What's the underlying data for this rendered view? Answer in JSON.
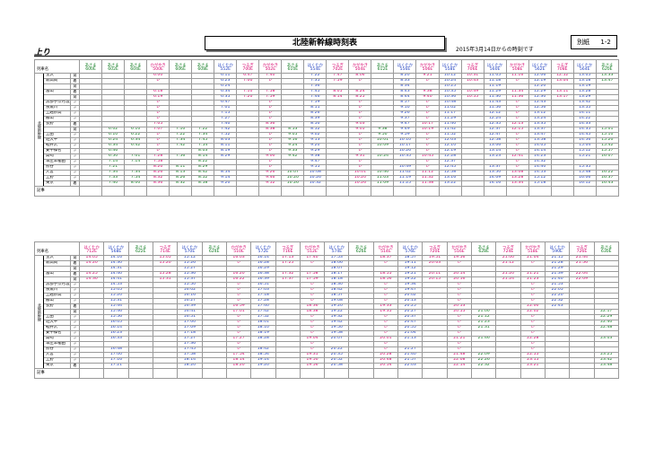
{
  "header": {
    "title": "北陸新幹線時刻表",
    "date_note": "2015年3月14日からの時刻です",
    "sheet_label": "別紙",
    "sheet_no": "1-2",
    "direction": "上り"
  },
  "labels": {
    "train_name": "列車名",
    "line_name": "北陸新幹線",
    "remarks": "記事",
    "arr": "着",
    "dep": "発"
  },
  "stations": [
    {
      "name": "金沢",
      "ad": "発"
    },
    {
      "name": "新高岡",
      "ad": "着"
    },
    {
      "name": "",
      "ad": "発"
    },
    {
      "name": "富山",
      "ad": "着"
    },
    {
      "name": "",
      "ad": "発"
    },
    {
      "name": "黒部宇奈月温泉",
      "ad": "〃"
    },
    {
      "name": "糸魚川",
      "ad": "〃"
    },
    {
      "name": "上越妙高",
      "ad": "〃"
    },
    {
      "name": "飯山",
      "ad": "〃"
    },
    {
      "name": "長野",
      "ad": "着"
    },
    {
      "name": "",
      "ad": "発"
    },
    {
      "name": "上田",
      "ad": "〃"
    },
    {
      "name": "佐久平",
      "ad": "〃"
    },
    {
      "name": "軽井沢",
      "ad": "〃"
    },
    {
      "name": "安中榛名",
      "ad": "〃"
    },
    {
      "name": "高崎",
      "ad": "〃"
    },
    {
      "name": "本庄早稲田",
      "ad": "〃"
    },
    {
      "name": "熊谷",
      "ad": "〃"
    },
    {
      "name": "大宮",
      "ad": "〃"
    },
    {
      "name": "上野",
      "ad": "〃"
    },
    {
      "name": "東京",
      "ad": "着"
    }
  ],
  "table1": [
    {
      "svc": "あさま",
      "no": "600E",
      "c": "green",
      "t": [
        "",
        "",
        "",
        "",
        "",
        "",
        "",
        "",
        "",
        "",
        "",
        "",
        "",
        "",
        "",
        "",
        "",
        "",
        "",
        "",
        ""
      ]
    },
    {
      "svc": "あさま",
      "no": "602E",
      "c": "green",
      "t": [
        "",
        "",
        "",
        "",
        "",
        "",
        "",
        "",
        "",
        "",
        "6:02",
        "6:10",
        "6:24",
        "6:34",
        "6:46",
        "6:50",
        "7:14",
        "7:21",
        "7:34",
        "7:33",
        "7:40"
      ]
    },
    {
      "svc": "あさま",
      "no": "604E",
      "c": "green",
      "t": [
        "",
        "",
        "",
        "",
        "",
        "",
        "",
        "",
        "",
        "",
        "6:10",
        "6:22",
        "6:34",
        "6:42",
        "",
        "7:01",
        "7:14",
        "",
        "7:34",
        "7:54",
        "8:00"
      ]
    },
    {
      "svc": "かがやき",
      "no": "500E",
      "c": "red",
      "t": [
        "6:00",
        "レ",
        "",
        "6:18",
        "6:19",
        "レ",
        "レ",
        "レ",
        "レ",
        "7:05",
        "7:07",
        "レ",
        "レ",
        "レ",
        "レ",
        "7:28",
        "7:58",
        "8:20",
        "8:26",
        "8:32",
        "8:36"
      ]
    },
    {
      "svc": "あさま",
      "no": "606E",
      "c": "green",
      "t": [
        "",
        "",
        "",
        "",
        "",
        "",
        "",
        "",
        "",
        "",
        "7:10",
        "7:22",
        "7:34",
        "7:42",
        "",
        "7:56",
        "",
        "8:11",
        "8:13",
        "8:26",
        "8:32"
      ]
    },
    {
      "svc": "あさま",
      "no": "608E",
      "c": "green",
      "t": [
        "",
        "",
        "",
        "",
        "",
        "",
        "",
        "",
        "",
        "",
        "7:22",
        "7:34",
        "7:45",
        "7:54",
        "8:03",
        "8:14",
        "8:22",
        "8:29",
        "8:42",
        "8:52",
        "8:58"
      ]
    },
    {
      "svc": "はくたか",
      "no": "552E",
      "c": "blue",
      "t": [
        "6:11",
        "6:23",
        "6:24",
        "6:34",
        "6:35",
        "6:47",
        "7:01",
        "7:15",
        "7:27",
        "7:40",
        "7:42",
        "7:52",
        "8:03",
        "8:11",
        "8:19",
        "8:29",
        "",
        "",
        "8:54",
        "9:14",
        "9:20"
      ]
    },
    {
      "svc": "つるぎ",
      "no": "700E",
      "c": "red",
      "t": [
        "6:47",
        "7:00",
        "",
        "7:10",
        "7:20",
        "",
        "",
        "",
        "",
        "",
        "",
        "",
        "",
        "",
        "",
        "",
        "",
        "",
        "",
        "",
        ""
      ]
    },
    {
      "svc": "かがやき",
      "no": "502E",
      "c": "red",
      "t": [
        "7:40",
        "レ",
        "",
        "7:58",
        "7:59",
        "レ",
        "レ",
        "レ",
        "レ",
        "8:36",
        "8:38",
        "レ",
        "レ",
        "レ",
        "レ",
        "9:00",
        "レ",
        "レ",
        "9:26",
        "9:46",
        "9:52"
      ]
    },
    {
      "svc": "あさま",
      "no": "610E",
      "c": "green",
      "t": [
        "",
        "",
        "",
        "",
        "",
        "",
        "",
        "",
        "",
        "",
        "8:53",
        "9:05",
        "9:16",
        "9:24",
        "9:33",
        "9:42",
        "",
        "",
        "10:07",
        "10:20",
        "10:26"
      ]
    },
    {
      "svc": "はくたか",
      "no": "554E",
      "c": "blue",
      "t": [
        "7:22",
        "7:35",
        "7:36",
        "7:45",
        "7:46",
        "7:59",
        "8:11",
        "8:26",
        "8:39",
        "8:50",
        "8:52",
        "9:02",
        "9:13",
        "9:20",
        "9:29",
        "9:38",
        "9:47",
        "9:55",
        "10:08",
        "10:26",
        "10:32"
      ]
    },
    {
      "svc": "つるぎ",
      "no": "702E",
      "c": "red",
      "t": [
        "7:47",
        "7:59",
        "",
        "8:05",
        "8:14",
        "",
        "",
        "",
        "",
        "",
        "",
        "",
        "",
        "",
        "",
        "",
        "",
        "",
        "",
        "",
        ""
      ]
    },
    {
      "svc": "かがやき",
      "no": "504E",
      "c": "red",
      "t": [
        "8:06",
        "レ",
        "",
        "8:24",
        "8:25",
        "レ",
        "レ",
        "レ",
        "レ",
        "9:03",
        "9:05",
        "レ",
        "レ",
        "レ",
        "レ",
        "9:31",
        "レ",
        "レ",
        "10:01",
        "10:20",
        "10:26"
      ]
    },
    {
      "svc": "あさま",
      "no": "612E",
      "c": "green",
      "t": [
        "",
        "",
        "",
        "",
        "",
        "",
        "",
        "",
        "",
        "",
        "9:38",
        "9:50",
        "10:01",
        "10:09",
        "",
        "10:24",
        "",
        "",
        "10:46",
        "11:03",
        "11:09"
      ]
    },
    {
      "svc": "はくたか",
      "no": "556E",
      "c": "blue",
      "t": [
        "8:20",
        "8:33",
        "8:34",
        "8:43",
        "8:44",
        "8:57",
        "9:10",
        "9:26",
        "9:37",
        "9:47",
        "9:49",
        "9:59",
        "10:10",
        "10:17",
        "10:26",
        "10:35",
        "",
        "10:49",
        "11:02",
        "11:19",
        "11:25"
      ]
    },
    {
      "svc": "かがやき",
      "no": "506E",
      "c": "red",
      "t": [
        "9:21",
        "レ",
        "",
        "9:38",
        "9:40",
        "レ",
        "レ",
        "レ",
        "レ",
        "10:17",
        "10:19",
        "レ",
        "レ",
        "レ",
        "レ",
        "10:45",
        "レ",
        "レ",
        "11:12",
        "11:32",
        "11:38"
      ]
    },
    {
      "svc": "はくたか",
      "no": "558E",
      "c": "blue",
      "t": [
        "10:12",
        "10:24",
        "10:25",
        "10:35",
        "10:36",
        "10:48",
        "11:02",
        "11:17",
        "11:29",
        "11:40",
        "11:42",
        "11:52",
        "12:03",
        "12:10",
        "12:19",
        "12:28",
        "12:37",
        "12:45",
        "12:58",
        "13:16",
        "13:22"
      ]
    },
    {
      "svc": "つるぎ",
      "no": "706E",
      "c": "red",
      "t": [
        "10:31",
        "10:43",
        "",
        "10:49",
        "10:55",
        "",
        "",
        "",
        "",
        "",
        "",
        "",
        "",
        "",
        "",
        "",
        "",
        "",
        "",
        "",
        ""
      ]
    },
    {
      "svc": "はくたか",
      "no": "560E",
      "c": "blue",
      "t": [
        "11:05",
        "11:18",
        "11:19",
        "11:29",
        "11:30",
        "11:43",
        "11:56",
        "12:12",
        "12:24",
        "12:35",
        "12:37",
        "12:47",
        "12:58",
        "13:06",
        "13:14",
        "13:23",
        "",
        "13:37",
        "13:50",
        "14:09",
        "14:16"
      ]
    },
    {
      "svc": "かがやき",
      "no": "508E",
      "c": "red",
      "t": [
        "11:16",
        "レ",
        "",
        "11:34",
        "11:36",
        "レ",
        "レ",
        "レ",
        "レ",
        "12:13",
        "12:15",
        "レ",
        "レ",
        "レ",
        "レ",
        "12:41",
        "レ",
        "レ",
        "13:08",
        "13:28",
        "13:34"
      ]
    },
    {
      "svc": "はくたか",
      "no": "562E",
      "c": "blue",
      "t": [
        "12:06",
        "12:19",
        "12:20",
        "12:29",
        "12:30",
        "12:43",
        "12:56",
        "13:12",
        "13:24",
        "13:35",
        "13:37",
        "13:47",
        "13:58",
        "14:05",
        "14:14",
        "14:23",
        "14:32",
        "14:40",
        "14:53",
        "15:12",
        "15:18"
      ]
    },
    {
      "svc": "つるぎ",
      "no": "708E",
      "c": "red",
      "t": [
        "12:52",
        "13:04",
        "",
        "13:11",
        "13:17",
        "",
        "",
        "",
        "",
        "",
        "",
        "",
        "",
        "",
        "",
        "",
        "",
        "",
        "",
        "",
        ""
      ]
    },
    {
      "svc": "はくたか",
      "no": "564E",
      "c": "blue",
      "t": [
        "13:05",
        "13:18",
        "13:19",
        "13:28",
        "13:29",
        "13:42",
        "13:55",
        "14:11",
        "14:22",
        "14:33",
        "14:35",
        "14:45",
        "14:56",
        "15:04",
        "15:12",
        "15:21",
        "",
        "15:35",
        "15:48",
        "16:06",
        "16:12"
      ]
    },
    {
      "svc": "あさま",
      "no": "620E",
      "c": "green",
      "t": [
        "13:33",
        "13:47",
        "",
        "",
        "",
        "",
        "",
        "",
        "",
        "",
        "15:01",
        "15:10",
        "15:20",
        "15:42",
        "15:57",
        "16:07",
        "",
        "",
        "16:22",
        "16:37",
        "16:43"
      ]
    }
  ],
  "table2": [
    {
      "svc": "はくたか",
      "no": "712E",
      "c": "red",
      "t": [
        "14:05",
        "14:20",
        "",
        "14:25",
        "14:30",
        "",
        "",
        "",
        "",
        "",
        "",
        "",
        "",
        "",
        "",
        "",
        "",
        "",
        "",
        "",
        ""
      ]
    },
    {
      "svc": "はくたか",
      "no": "568E",
      "c": "blue",
      "t": [
        "14:16",
        "14:30",
        "14:31",
        "14:40",
        "14:41",
        "14:53",
        "15:05",
        "15:20",
        "15:31",
        "15:44",
        "15:46",
        "15:56",
        "16:05",
        "16:14",
        "16:23",
        "16:33",
        "",
        "16:48",
        "17:00",
        "17:16",
        "17:21"
      ]
    },
    {
      "svc": "あさま",
      "no": "622E",
      "c": "green",
      "t": [
        "",
        "",
        "",
        "",
        "",
        "",
        "",
        "",
        "",
        "",
        "",
        "",
        "",
        "",
        "",
        "",
        "",
        "",
        "",
        "",
        ""
      ]
    },
    {
      "svc": "つるぎ",
      "no": "714E",
      "c": "red",
      "t": [
        "15:05",
        "15:20",
        "",
        "15:28",
        "15:31",
        "",
        "",
        "",
        "",
        "",
        "",
        "",
        "",
        "",
        "",
        "",
        "",
        "",
        "",
        "",
        ""
      ]
    },
    {
      "svc": "はくたか",
      "no": "570E",
      "c": "blue",
      "t": [
        "15:12",
        "15:26",
        "15:27",
        "15:36",
        "15:37",
        "15:50",
        "16:02",
        "16:16",
        "16:27",
        "16:39",
        "16:41",
        "16:51",
        "17:00",
        "17:09",
        "17:18",
        "17:27",
        "17:36",
        "17:45",
        "17:58",
        "18:14",
        "18:20"
      ]
    },
    {
      "svc": "あさま",
      "no": "624E",
      "c": "green",
      "t": [
        "",
        "",
        "",
        "",
        "",
        "",
        "",
        "",
        "",
        "",
        "",
        "",
        "",
        "",
        "",
        "",
        "",
        "",
        "",
        "",
        ""
      ]
    },
    {
      "svc": "かがやき",
      "no": "510E",
      "c": "red",
      "t": [
        "16:03",
        "レ",
        "",
        "16:20",
        "16:22",
        "レ",
        "レ",
        "レ",
        "レ",
        "16:59",
        "17:01",
        "レ",
        "レ",
        "レ",
        "レ",
        "17:27",
        "レ",
        "レ",
        "17:54",
        "18:14",
        "18:20"
      ]
    },
    {
      "svc": "はくたか",
      "no": "572E",
      "c": "blue",
      "t": [
        "16:14",
        "16:28",
        "16:29",
        "16:38",
        "16:39",
        "16:51",
        "17:03",
        "17:18",
        "17:28",
        "17:40",
        "17:42",
        "17:52",
        "18:01",
        "18:10",
        "18:19",
        "18:28",
        "",
        "18:42",
        "18:54",
        "19:14",
        "19:20"
      ]
    },
    {
      "svc": "つるぎ",
      "no": "716E",
      "c": "red",
      "t": [
        "17:13",
        "17:25",
        "",
        "17:32",
        "17:37",
        "",
        "",
        "",
        "",
        "",
        "",
        "",
        "",
        "",
        "",
        "",
        "",
        "",
        "",
        "",
        ""
      ]
    },
    {
      "svc": "かがやき",
      "no": "512E",
      "c": "red",
      "t": [
        "17:40",
        "レ",
        "",
        "17:58",
        "17:59",
        "レ",
        "レ",
        "レ",
        "レ",
        "18:36",
        "18:38",
        "レ",
        "レ",
        "レ",
        "レ",
        "19:04",
        "レ",
        "レ",
        "19:31",
        "19:50",
        "19:56"
      ]
    },
    {
      "svc": "はくたか",
      "no": "574E",
      "c": "blue",
      "t": [
        "17:53",
        "18:06",
        "18:07",
        "18:17",
        "18:18",
        "18:30",
        "18:42",
        "18:57",
        "19:08",
        "19:20",
        "19:22",
        "19:32",
        "19:42",
        "19:50",
        "19:58",
        "20:07",
        "",
        "20:22",
        "20:35",
        "20:52",
        "20:58"
      ]
    },
    {
      "svc": "あさま",
      "no": "626E",
      "c": "green",
      "t": [
        "",
        "",
        "",
        "",
        "",
        "",
        "",
        "",
        "",
        "",
        "",
        "",
        "",
        "",
        "",
        "",
        "",
        "",
        "",
        "",
        ""
      ]
    },
    {
      "svc": "かがやき",
      "no": "514E",
      "c": "red",
      "t": [
        "18:37",
        "レ",
        "",
        "18:55",
        "18:56",
        "レ",
        "レ",
        "レ",
        "レ",
        "19:33",
        "19:35",
        "レ",
        "レ",
        "レ",
        "レ",
        "20:01",
        "レ",
        "レ",
        "20:28",
        "20:48",
        "20:54"
      ]
    },
    {
      "svc": "はくたか",
      "no": "576E",
      "c": "blue",
      "t": [
        "18:57",
        "19:11",
        "19:12",
        "19:21",
        "19:22",
        "19:34",
        "19:47",
        "20:02",
        "20:13",
        "20:25",
        "20:27",
        "20:37",
        "20:47",
        "20:55",
        "21:04",
        "21:13",
        "",
        "21:27",
        "21:40",
        "21:57",
        "22:03"
      ]
    },
    {
      "svc": "つるぎ",
      "no": "720E",
      "c": "red",
      "t": [
        "19:51",
        "20:03",
        "",
        "20:11",
        "20:15",
        "",
        "",
        "",
        "",
        "",
        "",
        "",
        "",
        "",
        "",
        "",
        "",
        "",
        "",
        "",
        ""
      ]
    },
    {
      "svc": "かがやき",
      "no": "516E",
      "c": "red",
      "t": [
        "19:56",
        "レ",
        "",
        "20:14",
        "20:16",
        "レ",
        "レ",
        "レ",
        "レ",
        "20:53",
        "20:55",
        "レ",
        "レ",
        "レ",
        "レ",
        "21:21",
        "レ",
        "レ",
        "21:48",
        "22:08",
        "22:14"
      ]
    },
    {
      "svc": "あさま",
      "no": "628E",
      "c": "green",
      "t": [
        "",
        "",
        "",
        "",
        "",
        "",
        "",
        "",
        "",
        "",
        "21:00",
        "21:12",
        "21:23",
        "21:31",
        "",
        "21:46",
        "",
        "",
        "22:09",
        "22:26",
        "22:32"
      ]
    },
    {
      "svc": "つるぎ",
      "no": "724E",
      "c": "red",
      "t": [
        "21:00",
        "21:12",
        "",
        "21:20",
        "21:24",
        "",
        "",
        "",
        "",
        "",
        "",
        "",
        "",
        "",
        "",
        "",
        "",
        "",
        "",
        "",
        ""
      ]
    },
    {
      "svc": "かがやき",
      "no": "518E",
      "c": "red",
      "t": [
        "21:04",
        "レ",
        "",
        "21:21",
        "21:23",
        "レ",
        "レ",
        "レ",
        "レ",
        "22:00",
        "22:02",
        "レ",
        "レ",
        "レ",
        "レ",
        "22:28",
        "レ",
        "レ",
        "22:55",
        "23:15",
        "23:21"
      ]
    },
    {
      "svc": "はくたか",
      "no": "590E",
      "c": "blue",
      "t": [
        "21:15",
        "21:28",
        "21:29",
        "21:39",
        "21:40",
        "21:53",
        "22:05",
        "22:20",
        "22:32",
        "22:43",
        "",
        "",
        "",
        "",
        "",
        "",
        "",
        "",
        "",
        "",
        ""
      ]
    },
    {
      "svc": "つるぎ",
      "no": "726E",
      "c": "red",
      "t": [
        "21:44",
        "21:56",
        "",
        "22:04",
        "22:09",
        "",
        "",
        "",
        "",
        "",
        "",
        "",
        "",
        "",
        "",
        "",
        "",
        "",
        "",
        "",
        ""
      ]
    },
    {
      "svc": "あさま",
      "no": "630E",
      "c": "green",
      "t": [
        "",
        "",
        "",
        "",
        "",
        "",
        "",
        "",
        "",
        "",
        "22:17",
        "22:29",
        "22:40",
        "22:48",
        "",
        "23:03",
        "",
        "",
        "23:25",
        "23:42",
        "23:48"
      ]
    }
  ]
}
